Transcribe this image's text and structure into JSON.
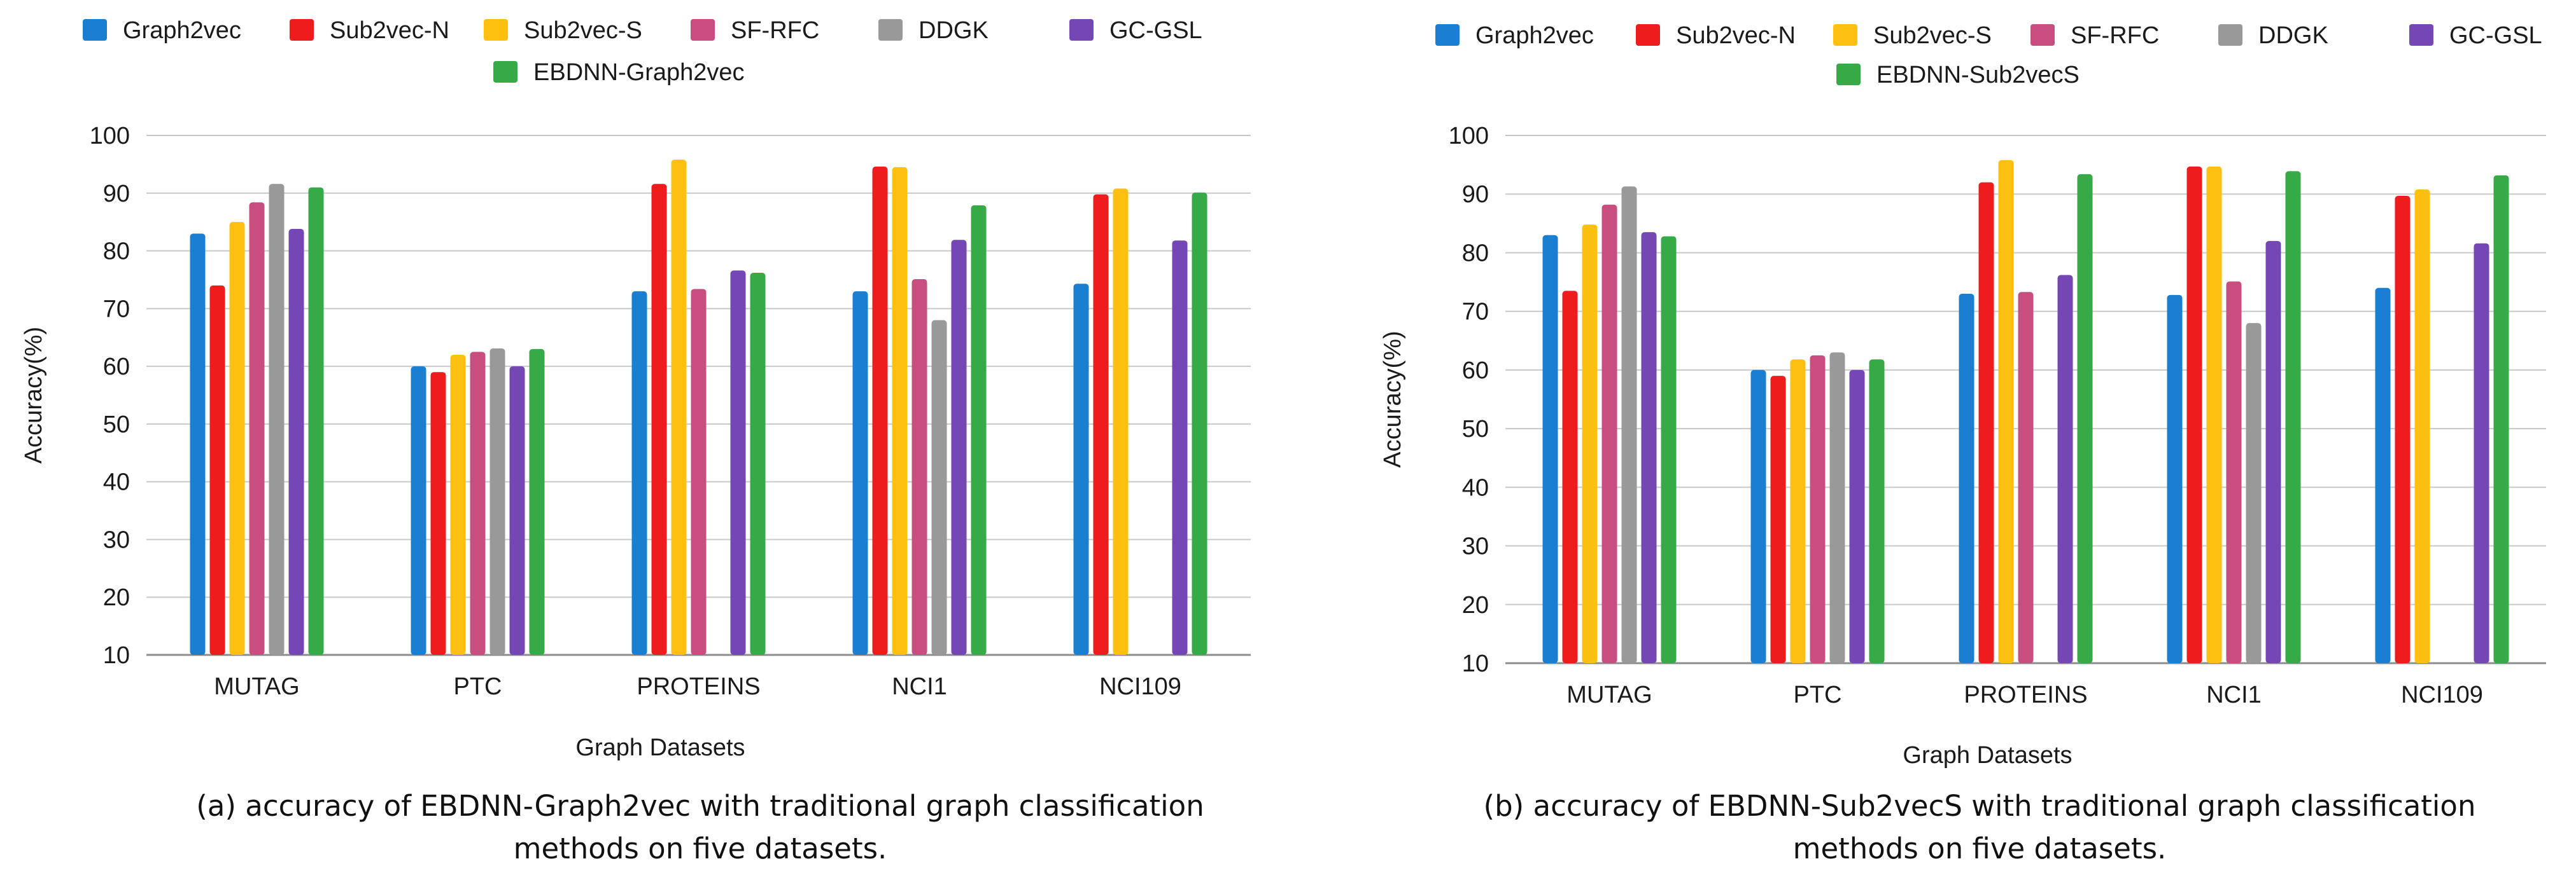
{
  "chart_data": [
    {
      "type": "bar",
      "title": "",
      "caption": [
        "(a) accuracy of EBDNN-Graph2vec with traditional graph classification",
        "methods on five datasets."
      ],
      "xlabel": "Graph Datasets",
      "ylabel": "Accuracy(%)",
      "ylim": [
        10,
        100
      ],
      "yticks": [
        10,
        20,
        30,
        40,
        50,
        60,
        70,
        80,
        90,
        100
      ],
      "grid": true,
      "legend_position": "top",
      "categories": [
        "MUTAG",
        "PTC",
        "PROTEINS",
        "NCI1",
        "NCI109"
      ],
      "series": [
        {
          "name": "Graph2vec",
          "color": "#1a7fd0",
          "values": [
            83,
            60,
            73,
            73,
            74.3
          ]
        },
        {
          "name": "Sub2vec-N",
          "color": "#ee1c1c",
          "values": [
            74,
            59,
            91.6,
            94.6,
            89.8
          ]
        },
        {
          "name": "Sub2vec-S",
          "color": "#fdc010",
          "values": [
            85,
            62,
            95.8,
            94.5,
            90.8
          ]
        },
        {
          "name": "SF-RFC",
          "color": "#c74e7e",
          "values": [
            88.4,
            62.5,
            73.4,
            75.1,
            null
          ]
        },
        {
          "name": "DDGK",
          "color": "#999999",
          "values": [
            91.6,
            63.1,
            null,
            68,
            null
          ]
        },
        {
          "name": "GC-GSL",
          "color": "#7547b5",
          "values": [
            83.8,
            60,
            76.6,
            81.9,
            81.8
          ]
        },
        {
          "name": "EBDNN-Graph2vec",
          "color": "#37aa48",
          "values": [
            91,
            63,
            76.2,
            87.9,
            90.1
          ]
        }
      ]
    },
    {
      "type": "bar",
      "title": "",
      "caption": [
        "(b)  accuracy of EBDNN-Sub2vecS with traditional graph classification",
        "methods on five datasets."
      ],
      "xlabel": "Graph Datasets",
      "ylabel": "Accuracy(%)",
      "ylim": [
        10,
        100
      ],
      "yticks": [
        10,
        20,
        30,
        40,
        50,
        60,
        70,
        80,
        90,
        100
      ],
      "grid": true,
      "legend_position": "top",
      "categories": [
        "MUTAG",
        "PTC",
        "PROTEINS",
        "NCI1",
        "NCI109"
      ],
      "series": [
        {
          "name": "Graph2vec",
          "color": "#1a7fd0",
          "values": [
            83,
            60,
            73,
            72.8,
            74
          ]
        },
        {
          "name": "Sub2vec-N",
          "color": "#ee1c1c",
          "values": [
            73.5,
            59,
            92,
            94.7,
            89.7
          ]
        },
        {
          "name": "Sub2vec-S",
          "color": "#fdc010",
          "values": [
            84.8,
            61.8,
            95.8,
            94.7,
            90.8
          ]
        },
        {
          "name": "SF-RFC",
          "color": "#c74e7e",
          "values": [
            88.2,
            62.5,
            73.3,
            75.1,
            null
          ]
        },
        {
          "name": "DDGK",
          "color": "#999999",
          "values": [
            91.3,
            63,
            null,
            68,
            null
          ]
        },
        {
          "name": "GC-GSL",
          "color": "#7547b5",
          "values": [
            83.5,
            60,
            76.2,
            82,
            81.6
          ]
        },
        {
          "name": "EBDNN-Sub2vecS",
          "color": "#37aa48",
          "values": [
            82.8,
            61.8,
            93.4,
            93.9,
            93.2
          ]
        }
      ]
    }
  ]
}
